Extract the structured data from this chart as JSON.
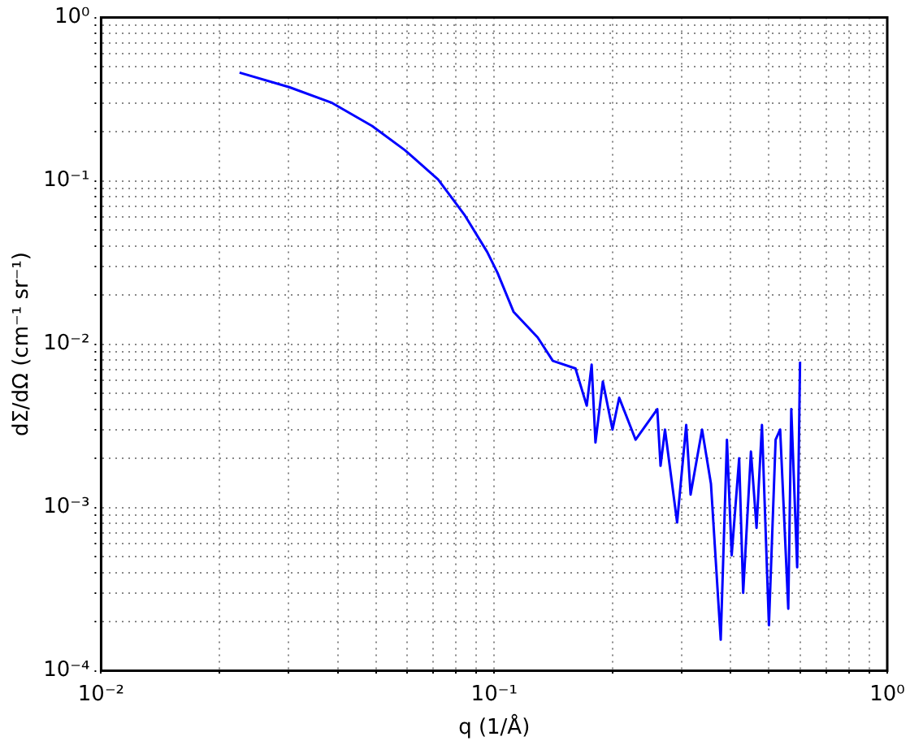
{
  "chart_data": {
    "type": "line",
    "xlabel": "q (1/Å)",
    "ylabel": "dΣ/dΩ (cm⁻¹ sr⁻¹)",
    "log": "xy",
    "grid": true,
    "legend": false,
    "marker": "none",
    "line_style": "solid",
    "xlim": [
      0.01,
      1
    ],
    "ylim": [
      0.0001,
      1
    ],
    "xticks": [
      {
        "value": 0.01,
        "label": "10⁻²"
      },
      {
        "value": 0.02,
        "label": null
      },
      {
        "value": 0.03,
        "label": null
      },
      {
        "value": 0.04,
        "label": null
      },
      {
        "value": 0.05,
        "label": null
      },
      {
        "value": 0.06,
        "label": null
      },
      {
        "value": 0.07,
        "label": null
      },
      {
        "value": 0.08,
        "label": null
      },
      {
        "value": 0.09,
        "label": null
      },
      {
        "value": 0.1,
        "label": "10⁻¹"
      },
      {
        "value": 0.2,
        "label": null
      },
      {
        "value": 0.3,
        "label": null
      },
      {
        "value": 0.4,
        "label": null
      },
      {
        "value": 0.5,
        "label": null
      },
      {
        "value": 0.6,
        "label": null
      },
      {
        "value": 0.7,
        "label": null
      },
      {
        "value": 0.8,
        "label": null
      },
      {
        "value": 0.9,
        "label": null
      },
      {
        "value": 1,
        "label": "10⁰"
      }
    ],
    "yticks": [
      {
        "value": 0.0001,
        "label": "10⁻⁴"
      },
      {
        "value": 0.0002,
        "label": null
      },
      {
        "value": 0.0003,
        "label": null
      },
      {
        "value": 0.0004,
        "label": null
      },
      {
        "value": 0.0005,
        "label": null
      },
      {
        "value": 0.0006,
        "label": null
      },
      {
        "value": 0.0007,
        "label": null
      },
      {
        "value": 0.0008,
        "label": null
      },
      {
        "value": 0.0009,
        "label": null
      },
      {
        "value": 0.001,
        "label": "10⁻³"
      },
      {
        "value": 0.002,
        "label": null
      },
      {
        "value": 0.003,
        "label": null
      },
      {
        "value": 0.004,
        "label": null
      },
      {
        "value": 0.005,
        "label": null
      },
      {
        "value": 0.006,
        "label": null
      },
      {
        "value": 0.007,
        "label": null
      },
      {
        "value": 0.008,
        "label": null
      },
      {
        "value": 0.009,
        "label": null
      },
      {
        "value": 0.01,
        "label": "10⁻²"
      },
      {
        "value": 0.02,
        "label": null
      },
      {
        "value": 0.03,
        "label": null
      },
      {
        "value": 0.04,
        "label": null
      },
      {
        "value": 0.05,
        "label": null
      },
      {
        "value": 0.06,
        "label": null
      },
      {
        "value": 0.07,
        "label": null
      },
      {
        "value": 0.08,
        "label": null
      },
      {
        "value": 0.09,
        "label": null
      },
      {
        "value": 0.1,
        "label": "10⁻¹"
      },
      {
        "value": 0.2,
        "label": null
      },
      {
        "value": 0.3,
        "label": null
      },
      {
        "value": 0.4,
        "label": null
      },
      {
        "value": 0.5,
        "label": null
      },
      {
        "value": 0.6,
        "label": null
      },
      {
        "value": 0.7,
        "label": null
      },
      {
        "value": 0.8,
        "label": null
      },
      {
        "value": 0.9,
        "label": null
      },
      {
        "value": 1,
        "label": "10⁰"
      }
    ],
    "series": [
      {
        "color": "#0000ff",
        "x": [
          0.0225,
          0.0301,
          0.0387,
          0.0489,
          0.0593,
          0.072,
          0.084,
          0.096,
          0.102,
          0.112,
          0.129,
          0.141,
          0.161,
          0.172,
          0.177,
          0.181,
          0.189,
          0.2,
          0.208,
          0.229,
          0.26,
          0.265,
          0.272,
          0.292,
          0.308,
          0.316,
          0.338,
          0.356,
          0.377,
          0.391,
          0.402,
          0.42,
          0.43,
          0.45,
          0.465,
          0.48,
          0.5,
          0.52,
          0.534,
          0.56,
          0.57,
          0.59,
          0.6
        ],
        "values": [
          0.46,
          0.375,
          0.3,
          0.217,
          0.154,
          0.102,
          0.062,
          0.0367,
          0.0273,
          0.0158,
          0.011,
          0.0079,
          0.0071,
          0.0042,
          0.0075,
          0.0025,
          0.0059,
          0.003,
          0.0047,
          0.0026,
          0.004,
          0.0018,
          0.003,
          0.00081,
          0.0032,
          0.0012,
          0.003,
          0.0014,
          0.000155,
          0.0026,
          0.00051,
          0.002,
          0.0003,
          0.0022,
          0.00075,
          0.0032,
          0.00019,
          0.0026,
          0.003,
          0.00024,
          0.004,
          0.00043,
          0.0078
        ]
      }
    ]
  }
}
